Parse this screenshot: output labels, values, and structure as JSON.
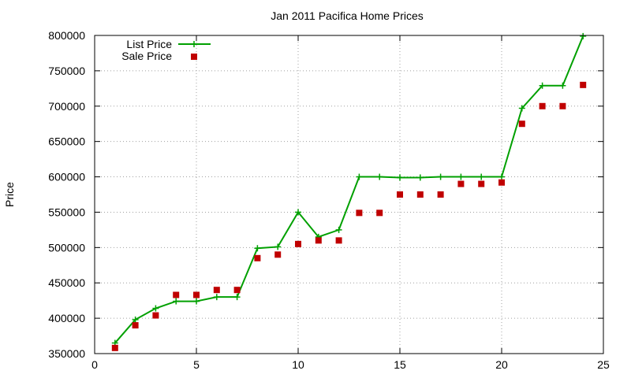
{
  "chart_data": {
    "type": "line",
    "title": "Jan 2011 Pacifica Home Prices",
    "xlabel": "",
    "ylabel": "Price",
    "xlim": [
      0,
      25
    ],
    "ylim": [
      350000,
      800000
    ],
    "xticks": [
      0,
      5,
      10,
      15,
      20,
      25
    ],
    "yticks": [
      350000,
      400000,
      450000,
      500000,
      550000,
      600000,
      650000,
      700000,
      750000,
      800000
    ],
    "grid": true,
    "legend_position": "top-left",
    "x": [
      1,
      2,
      3,
      4,
      5,
      6,
      7,
      8,
      9,
      10,
      11,
      12,
      13,
      14,
      15,
      16,
      17,
      18,
      19,
      20,
      21,
      22,
      23,
      24
    ],
    "series": [
      {
        "name": "List Price",
        "style": "line-with-plus",
        "color": "#00a000",
        "values": [
          365000,
          398000,
          414000,
          424000,
          424000,
          430000,
          430000,
          499000,
          501000,
          550000,
          515000,
          525000,
          600000,
          600000,
          599000,
          599000,
          600000,
          600000,
          600000,
          600000,
          697000,
          729000,
          729000,
          799000
        ]
      },
      {
        "name": "Sale Price",
        "style": "square-points",
        "color": "#c00000",
        "values": [
          358000,
          390000,
          404000,
          433000,
          433000,
          440000,
          440000,
          485000,
          490000,
          505000,
          510000,
          510000,
          549000,
          549000,
          575000,
          575000,
          575000,
          590000,
          590000,
          592000,
          675000,
          700000,
          700000,
          730000
        ]
      }
    ]
  }
}
